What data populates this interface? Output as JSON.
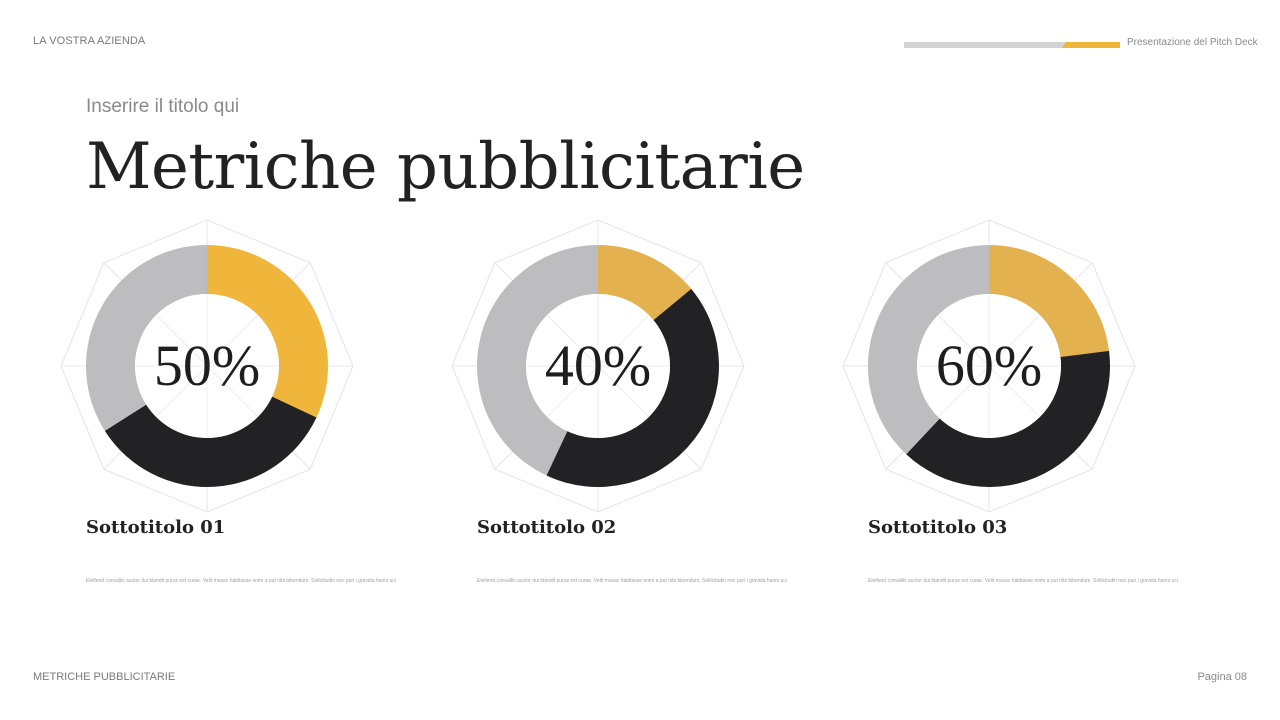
{
  "header": {
    "company": "LA VOSTRA AZIENDA",
    "deck_title": "Presentazione del Pitch Deck",
    "progress_colors": {
      "track": "#d3d3d3",
      "fill": "#f0b63c"
    }
  },
  "slide": {
    "kicker": "Inserire il titolo qui",
    "title": "Metriche pubblicitarie"
  },
  "cards": [
    {
      "value": "50%",
      "subtitle": "Sottotitolo 01",
      "text": "Eleifend convallis auctor dui blandit purus est curae. Velit musac habitasse enim a put nibi bibendum. Sollicitudin nec puri i gravida hanni uci"
    },
    {
      "value": "40%",
      "subtitle": "Sottotitolo 02",
      "text": "Eleifend convallis auctor dui blandit purus est curae. Velit musac habitasse enim a put nibi bibendum. Sollicitudin nec puri i gravida hanni uci"
    },
    {
      "value": "60%",
      "subtitle": "Sottotitolo 03",
      "text": "Eleifend convallis auctor dui blandit purus est curae. Velit musac habitasse enim a put nibi bibendum. Sollicitudin nec puri i gravida hanni uci"
    }
  ],
  "footer": {
    "left": "METRICHE PUBBLICITARIE",
    "right": "Pagina 08"
  },
  "colors": {
    "yellow": "#f0b63c",
    "yellow_muted": "#e3b24e",
    "dark": "#222224",
    "grey": "#bdbdbf",
    "grid": "#e6e3ea"
  },
  "chart_data": [
    {
      "type": "pie",
      "title": "50%",
      "subtitle": "Sottotitolo 01",
      "donut": true,
      "categories": [
        "Yellow",
        "Dark",
        "Grey"
      ],
      "values": [
        32,
        34,
        34
      ],
      "colors": [
        "#f0b63c",
        "#222224",
        "#bdbdbf"
      ],
      "center_label": "50%",
      "background_grid": "octagon"
    },
    {
      "type": "pie",
      "title": "40%",
      "subtitle": "Sottotitolo 02",
      "donut": true,
      "categories": [
        "Yellow",
        "Dark",
        "Grey"
      ],
      "values": [
        14,
        43,
        43
      ],
      "colors": [
        "#e3b24e",
        "#222224",
        "#bdbdbf"
      ],
      "center_label": "40%",
      "background_grid": "octagon"
    },
    {
      "type": "pie",
      "title": "60%",
      "subtitle": "Sottotitolo 03",
      "donut": true,
      "categories": [
        "Yellow",
        "Dark",
        "Grey"
      ],
      "values": [
        23,
        39,
        38
      ],
      "colors": [
        "#e3b24e",
        "#222224",
        "#bdbdbf"
      ],
      "center_label": "60%",
      "background_grid": "octagon"
    }
  ]
}
